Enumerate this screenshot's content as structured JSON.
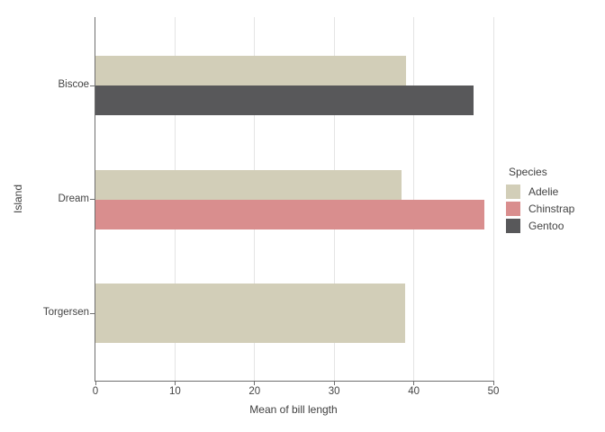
{
  "chart_data": {
    "type": "bar",
    "orientation": "horizontal",
    "xlabel": "Mean of bill length",
    "ylabel": "Island",
    "xlim": [
      0,
      50
    ],
    "x_ticks": [
      0,
      10,
      20,
      30,
      40,
      50
    ],
    "categories": [
      "Biscoe",
      "Dream",
      "Torgersen"
    ],
    "grid": true,
    "legend_position": "right",
    "legend": {
      "title": "Species",
      "items": [
        {
          "label": "Adelie",
          "color": "#d2ceb8"
        },
        {
          "label": "Chinstrap",
          "color": "#d98e8e"
        },
        {
          "label": "Gentoo",
          "color": "#58585a"
        }
      ]
    },
    "bars": [
      {
        "category": "Biscoe",
        "series": "Adelie",
        "value": 38.98
      },
      {
        "category": "Biscoe",
        "series": "Gentoo",
        "value": 47.5
      },
      {
        "category": "Dream",
        "series": "Adelie",
        "value": 38.5
      },
      {
        "category": "Dream",
        "series": "Chinstrap",
        "value": 48.83
      },
      {
        "category": "Torgersen",
        "series": "Adelie",
        "value": 38.95
      }
    ]
  },
  "colors": {
    "axis_line": "#6f6f6f",
    "gridline": "#e4e4e4",
    "text": "#434343",
    "background": "#ffffff"
  }
}
